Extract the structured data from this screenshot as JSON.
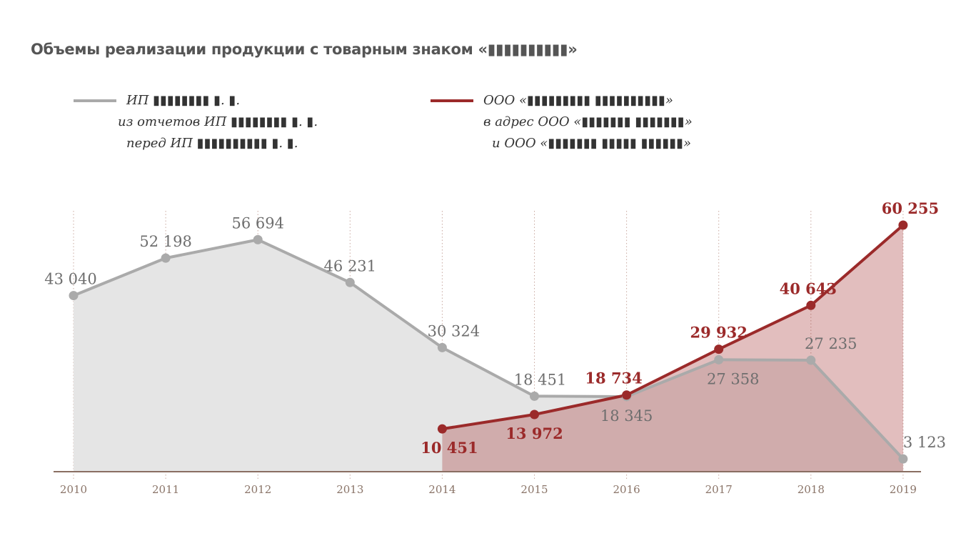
{
  "title": "Объемы реализации продукции с товарным знаком «▮▮▮▮▮▮▮▮▮▮»",
  "legend": [
    {
      "color": "#aaaaaa",
      "lines": [
        "ИП ▮▮▮▮▮▮▮▮ ▮. ▮.",
        "из отчетов ИП ▮▮▮▮▮▮▮▮ ▮. ▮.",
        "перед ИП ▮▮▮▮▮▮▮▮▮▮ ▮. ▮."
      ]
    },
    {
      "color": "#9b2a2a",
      "lines": [
        "ООО «▮▮▮▮▮▮▮▮▮ ▮▮▮▮▮▮▮▮▮▮»",
        "в адрес ООО «▮▮▮▮▮▮▮ ▮▮▮▮▮▮▮»",
        "и ООО «▮▮▮▮▮▮▮ ▮▮▮▮▮ ▮▮▮▮▮▮»"
      ]
    }
  ],
  "chart_data": {
    "type": "area",
    "title": "Объемы реализации продукции с товарным знаком «▮▮▮▮▮▮▮▮▮▮»",
    "x": [
      "2010",
      "2011",
      "2012",
      "2013",
      "2014",
      "2015",
      "2016",
      "2017",
      "2018",
      "2019"
    ],
    "ylim": [
      0,
      62000
    ],
    "grid": "vertical dotted",
    "legend_position": "top",
    "series": [
      {
        "color": "#aaaaaa",
        "fill": "#e5e5e5",
        "values": [
          43040,
          52198,
          56694,
          46231,
          30324,
          18451,
          18345,
          27358,
          27235,
          3123
        ],
        "labels": [
          "43 040",
          "52 198",
          "56 694",
          "46 231",
          "30 324",
          "18 451",
          "18 345",
          "27 358",
          "27 235",
          "3 123"
        ]
      },
      {
        "color": "#9b2a2a",
        "fill": "rgba(160,40,40,0.3)",
        "values": [
          null,
          null,
          null,
          null,
          10451,
          13972,
          18734,
          29932,
          40643,
          60255
        ],
        "labels": [
          null,
          null,
          null,
          null,
          "10 451",
          "13 972",
          "18 734",
          "29 932",
          "40 643",
          "60 255"
        ]
      }
    ]
  }
}
